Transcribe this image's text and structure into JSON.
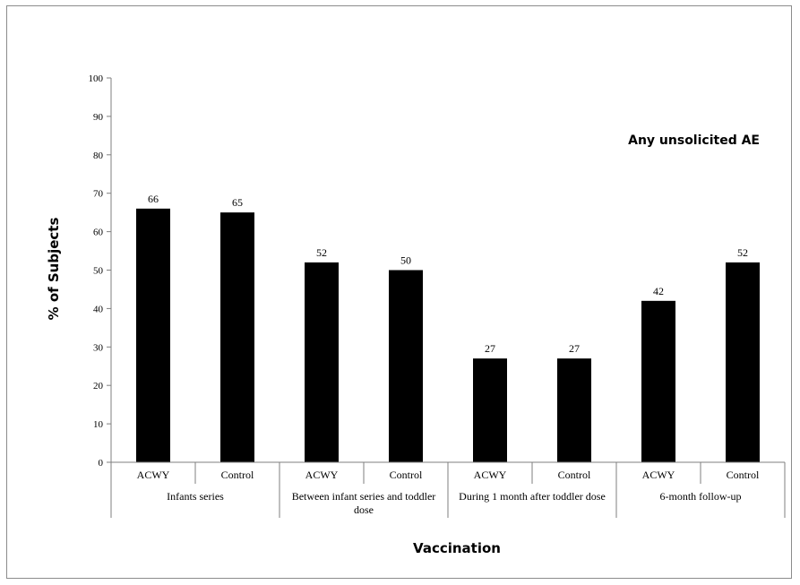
{
  "chart_data": {
    "type": "bar",
    "title": "",
    "annotation": "Any unsolicited AE",
    "ylabel": "% of Subjects",
    "xlabel": "Vaccination",
    "ylim": [
      0,
      100
    ],
    "yticks": [
      0,
      10,
      20,
      30,
      40,
      50,
      60,
      70,
      80,
      90,
      100
    ],
    "groups": [
      {
        "name": "Infants series",
        "name_lines": [
          "Infants series"
        ],
        "categories": [
          "ACWY",
          "Control"
        ],
        "values": [
          66,
          65
        ]
      },
      {
        "name": "Between infant series and toddler dose",
        "name_lines": [
          "Between infant series and toddler",
          "dose"
        ],
        "categories": [
          "ACWY",
          "Control"
        ],
        "values": [
          52,
          50
        ]
      },
      {
        "name": "During 1 month after toddler dose",
        "name_lines": [
          "During 1 month after toddler dose"
        ],
        "categories": [
          "ACWY",
          "Control"
        ],
        "values": [
          27,
          27
        ]
      },
      {
        "name": "6-month follow-up",
        "name_lines": [
          "6-month follow-up"
        ],
        "categories": [
          "ACWY",
          "Control"
        ],
        "values": [
          42,
          52
        ]
      }
    ],
    "bar_color": "#000000",
    "grid": false,
    "legend": "none"
  }
}
